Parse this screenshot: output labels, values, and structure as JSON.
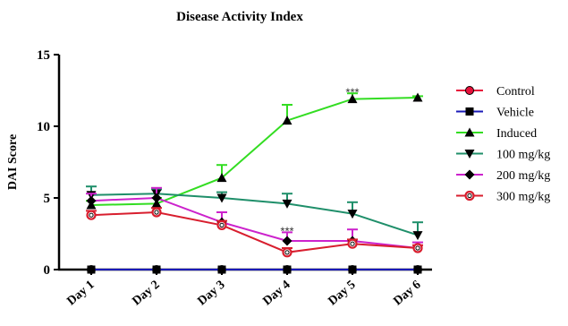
{
  "chart_data": {
    "type": "line",
    "title": "Disease Activity Index",
    "ylabel": "DAI Score",
    "xlabel": "",
    "categories": [
      "Day 1",
      "Day 2",
      "Day 3",
      "Day 4",
      "Day 5",
      "Day 6"
    ],
    "ylim": [
      0,
      15
    ],
    "yticks": [
      0,
      5,
      10,
      15
    ],
    "grid": false,
    "legend_position": "right",
    "series": [
      {
        "name": "Control",
        "color": "#e8103a",
        "marker": "circle-filled",
        "values": [
          0,
          0,
          0,
          0,
          0,
          0
        ],
        "errors": [
          0,
          0,
          0,
          0,
          0,
          0
        ]
      },
      {
        "name": "Vehicle",
        "color": "#1a1ab8",
        "marker": "square",
        "values": [
          0,
          0,
          0,
          0,
          0,
          0
        ],
        "errors": [
          0,
          0,
          0,
          0,
          0,
          0
        ]
      },
      {
        "name": "Induced",
        "color": "#33dd22",
        "marker": "triangle-up",
        "values": [
          4.5,
          4.6,
          6.4,
          10.4,
          11.9,
          12.0
        ],
        "errors": [
          0.3,
          0.4,
          0.9,
          1.1,
          0.4,
          0.1
        ]
      },
      {
        "name": "100 mg/kg",
        "color": "#1f8f6a",
        "marker": "triangle-down",
        "values": [
          5.2,
          5.3,
          5.0,
          4.6,
          3.9,
          2.4
        ],
        "errors": [
          0.6,
          0.3,
          0.4,
          0.7,
          0.8,
          0.9
        ]
      },
      {
        "name": "200 mg/kg",
        "color": "#cc22cc",
        "marker": "diamond",
        "values": [
          4.8,
          5.0,
          3.3,
          2.0,
          2.0,
          1.5
        ],
        "errors": [
          0.5,
          0.7,
          0.7,
          0.6,
          0.8,
          0.4
        ]
      },
      {
        "name": "300 mg/kg",
        "color": "#d81e2e",
        "marker": "circle-open",
        "values": [
          3.8,
          4.0,
          3.1,
          1.2,
          1.8,
          1.5
        ],
        "errors": [
          0.3,
          0.3,
          0.3,
          0.3,
          0.3,
          0.2
        ]
      }
    ],
    "annotations": [
      {
        "text": "***",
        "x": "Day 5",
        "y": 12.6
      },
      {
        "text": "***",
        "x": "Day 4",
        "y": 2.9
      }
    ]
  }
}
